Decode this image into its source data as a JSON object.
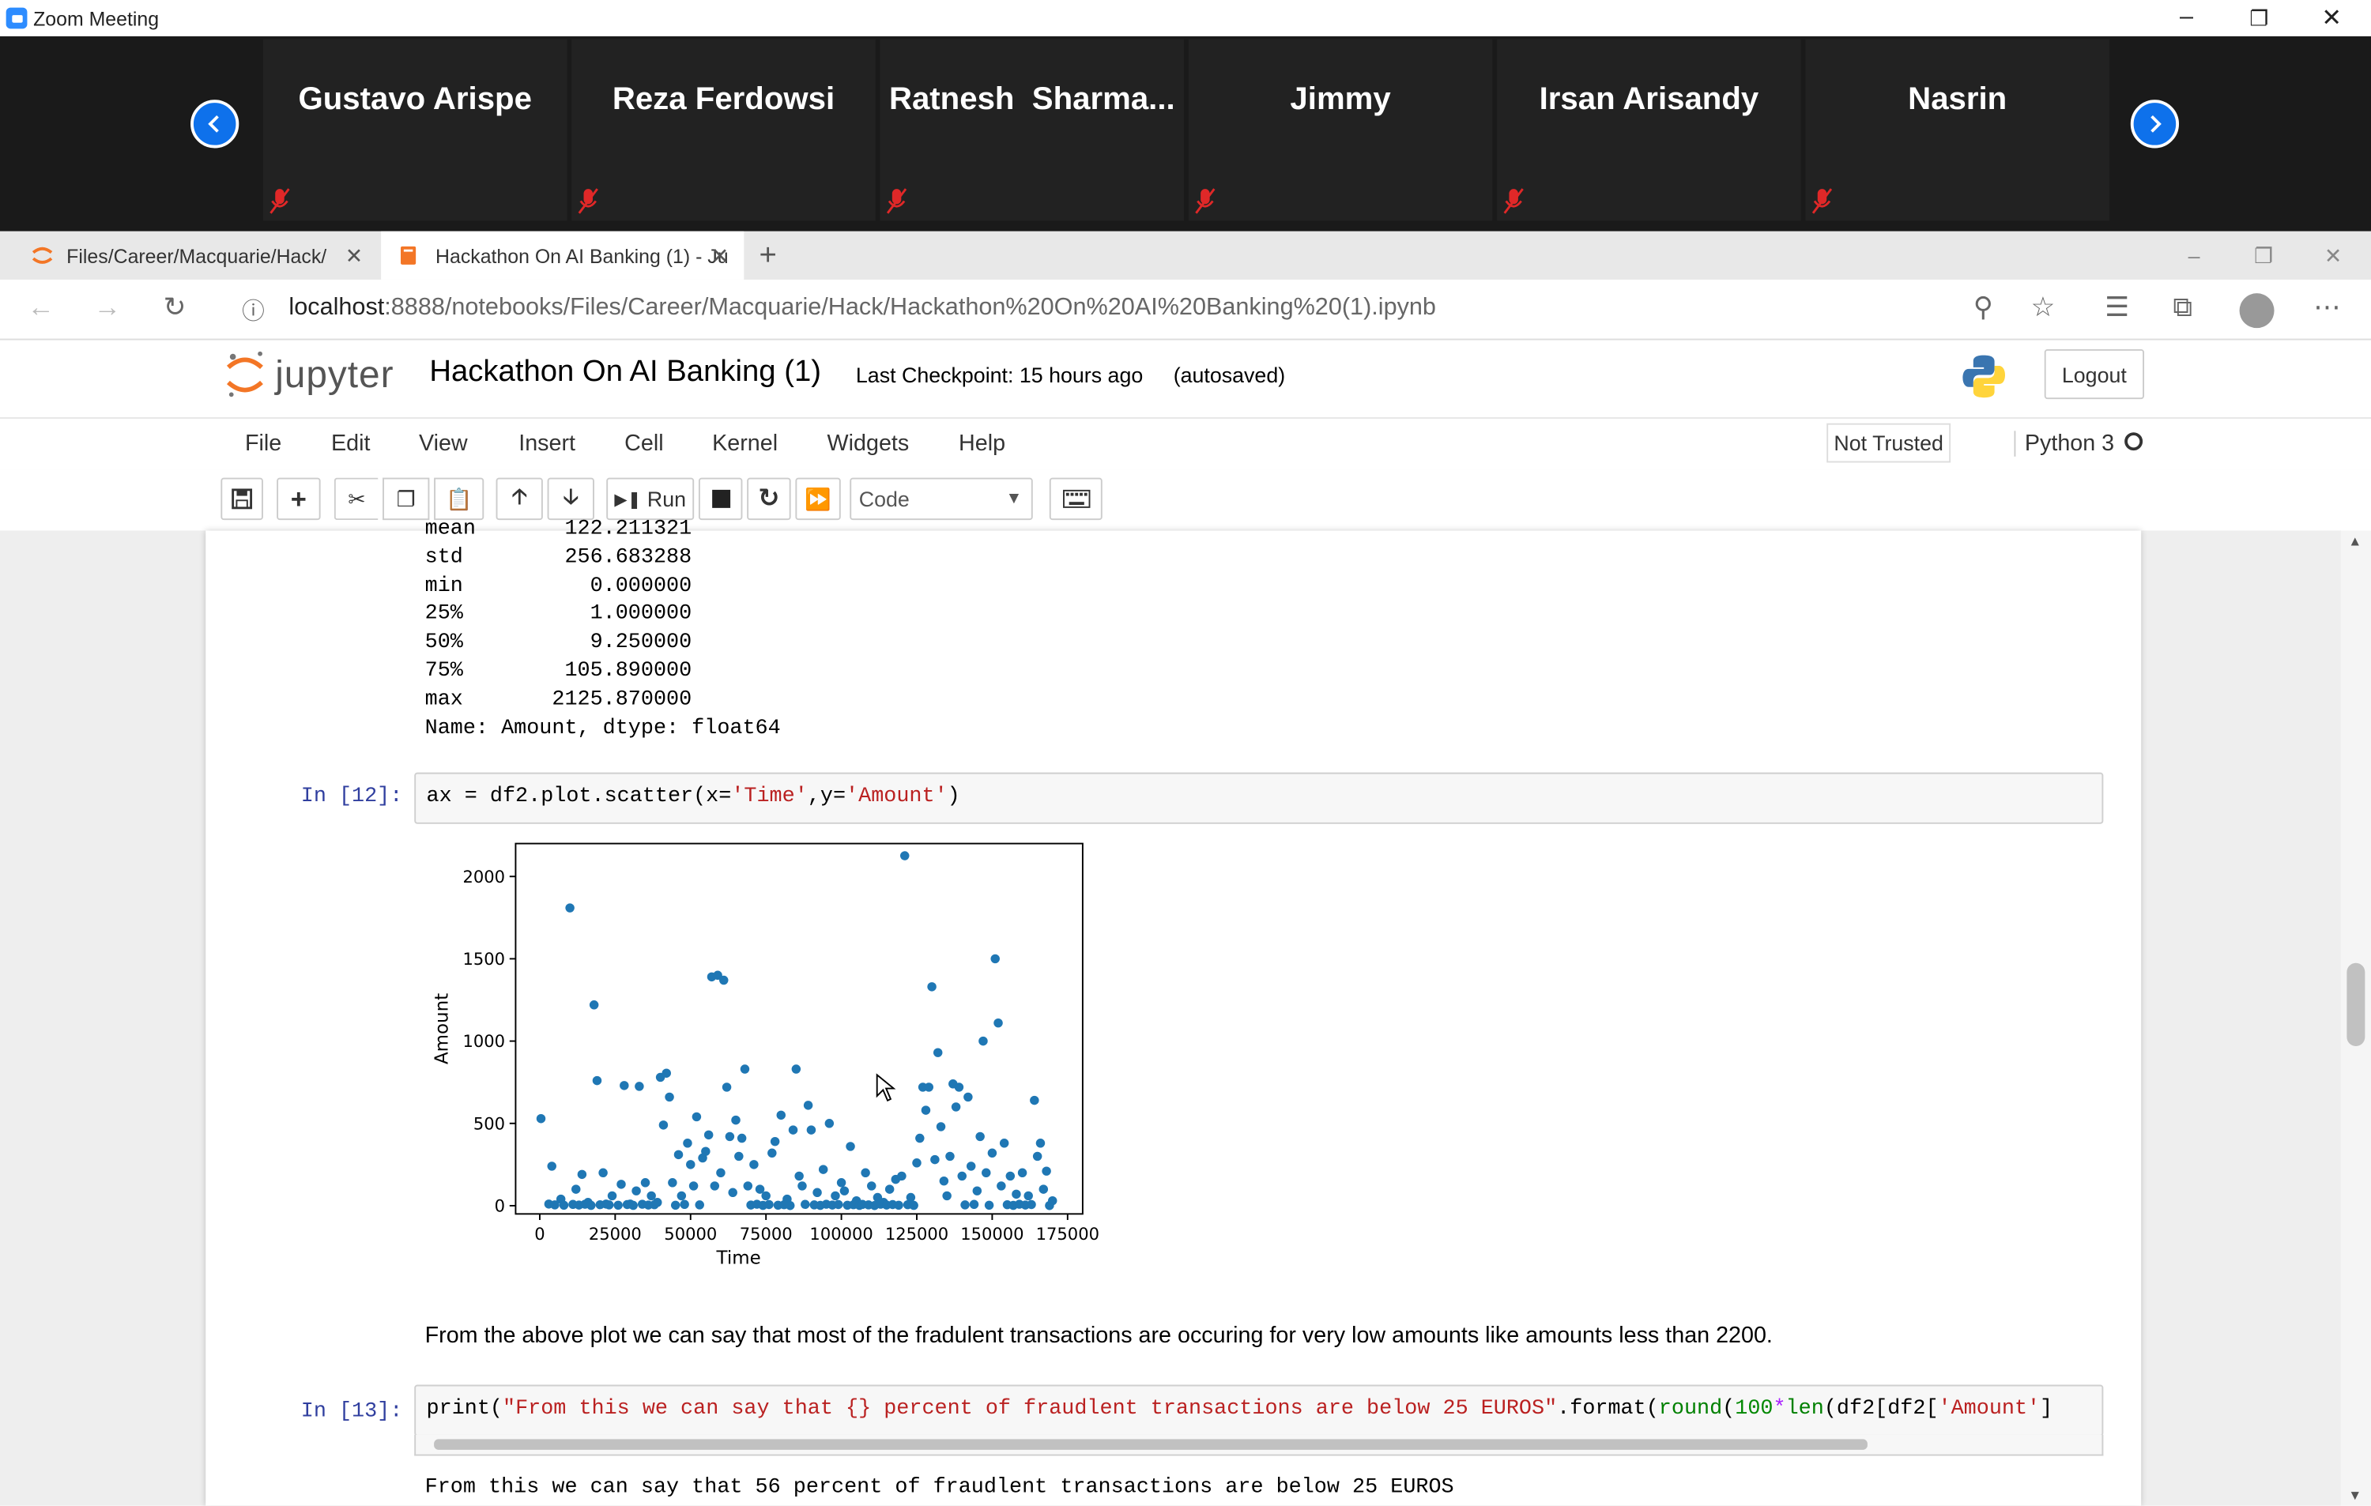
{
  "zoom": {
    "window_title": "Zoom Meeting",
    "participants": [
      {
        "name": "Gustavo Arispe"
      },
      {
        "name": "Reza Ferdowsi"
      },
      {
        "name": "Ratnesh  Sharma..."
      },
      {
        "name": "Jimmy"
      },
      {
        "name": "Irsan Arisandy"
      },
      {
        "name": "Nasrin"
      }
    ],
    "icons": {
      "prev": "chevron-left-icon",
      "next": "chevron-right-icon",
      "muted": "mic-muted-icon"
    },
    "accent": "#0e71eb",
    "muted_color": "#e02828"
  },
  "browser": {
    "tabs": [
      {
        "label": "Files/Career/Macquarie/Hack/"
      },
      {
        "label": "Hackathon On AI Banking (1) - Ju"
      }
    ],
    "url_host": "localhost",
    "url_rest": ":8888/notebooks/Files/Career/Macquarie/Hack/Hackathon%20On%20AI%20Banking%20(1).ipynb"
  },
  "jupyter": {
    "logo_text": "jupyter",
    "notebook_title": "Hackathon On AI Banking (1)",
    "checkpoint": "Last Checkpoint: 15 hours ago",
    "autosave": "(autosaved)",
    "logout_label": "Logout",
    "menu": [
      "File",
      "Edit",
      "View",
      "Insert",
      "Cell",
      "Kernel",
      "Widgets",
      "Help"
    ],
    "trust_label": "Not Trusted",
    "kernel_name": "Python 3",
    "toolbar": {
      "run_label": "Run",
      "cell_type": "Code"
    },
    "brand_color": "#f37626"
  },
  "notebook": {
    "describe_output": [
      "mean       122.211321",
      "std        256.683288",
      "min          0.000000",
      "25%          1.000000",
      "50%          9.250000",
      "75%        105.890000",
      "max       2125.870000",
      "Name: Amount, dtype: float64"
    ],
    "cell12": {
      "prompt": "In [12]:",
      "code": {
        "a": "ax = df2.plot.scatter(x=",
        "s1": "'Time'",
        "b": ",y=",
        "s2": "'Amount'",
        "c": ")"
      }
    },
    "markdown": "From the above plot we can say that most of the fradulent transactions are occuring for very low amounts like amounts less than 2200.",
    "cell13": {
      "prompt": "In [13]:",
      "code": {
        "a": "print(",
        "s1": "\"From this we can say that {} percent of fraudlent transactions are below 25 EUROS\"",
        "b": ".format(",
        "k1": "round",
        "c": "(",
        "n1": "100",
        "d": "*",
        "k2": "len",
        "e": "(df2[df2[",
        "s2": "'Amount'",
        "f": "]"
      },
      "output": "From this we can say that 56 percent of fraudlent transactions are below 25 EUROS"
    }
  },
  "chart_data": {
    "type": "scatter",
    "xlabel": "Time",
    "ylabel": "Amount",
    "xlim": [
      -8000,
      180000
    ],
    "ylim": [
      -50,
      2200
    ],
    "xticks": [
      0,
      25000,
      50000,
      75000,
      100000,
      125000,
      150000,
      175000
    ],
    "yticks": [
      0,
      500,
      1000,
      1500,
      2000
    ],
    "color": "#1f77b4",
    "points": [
      [
        406,
        529
      ],
      [
        4000,
        240
      ],
      [
        7000,
        40
      ],
      [
        10000,
        1809
      ],
      [
        12000,
        100
      ],
      [
        14000,
        190
      ],
      [
        16000,
        20
      ],
      [
        18000,
        1220
      ],
      [
        19000,
        760
      ],
      [
        21000,
        200
      ],
      [
        22000,
        10
      ],
      [
        24000,
        60
      ],
      [
        27000,
        130
      ],
      [
        28000,
        730
      ],
      [
        30000,
        10
      ],
      [
        32000,
        90
      ],
      [
        33000,
        725
      ],
      [
        35000,
        140
      ],
      [
        37000,
        60
      ],
      [
        39000,
        20
      ],
      [
        40000,
        780
      ],
      [
        41000,
        490
      ],
      [
        42000,
        805
      ],
      [
        43000,
        660
      ],
      [
        44000,
        140
      ],
      [
        46000,
        310
      ],
      [
        47000,
        60
      ],
      [
        49000,
        380
      ],
      [
        50000,
        250
      ],
      [
        51000,
        120
      ],
      [
        52000,
        540
      ],
      [
        54000,
        290
      ],
      [
        55000,
        330
      ],
      [
        56000,
        430
      ],
      [
        57000,
        1390
      ],
      [
        58000,
        120
      ],
      [
        59000,
        1400
      ],
      [
        60000,
        200
      ],
      [
        61000,
        1370
      ],
      [
        62000,
        720
      ],
      [
        63000,
        420
      ],
      [
        64000,
        80
      ],
      [
        65000,
        520
      ],
      [
        66000,
        300
      ],
      [
        67000,
        410
      ],
      [
        68000,
        830
      ],
      [
        69000,
        120
      ],
      [
        71000,
        250
      ],
      [
        73000,
        100
      ],
      [
        75000,
        60
      ],
      [
        77000,
        320
      ],
      [
        78000,
        390
      ],
      [
        80000,
        550
      ],
      [
        82000,
        40
      ],
      [
        84000,
        460
      ],
      [
        85000,
        830
      ],
      [
        86000,
        180
      ],
      [
        87000,
        120
      ],
      [
        89000,
        610
      ],
      [
        90000,
        460
      ],
      [
        92000,
        80
      ],
      [
        94000,
        220
      ],
      [
        96000,
        500
      ],
      [
        98000,
        60
      ],
      [
        100000,
        140
      ],
      [
        101000,
        90
      ],
      [
        103000,
        360
      ],
      [
        105000,
        30
      ],
      [
        108000,
        200
      ],
      [
        110000,
        120
      ],
      [
        112000,
        50
      ],
      [
        114000,
        20
      ],
      [
        116000,
        100
      ],
      [
        118000,
        160
      ],
      [
        120000,
        180
      ],
      [
        121000,
        2126
      ],
      [
        123000,
        50
      ],
      [
        125000,
        260
      ],
      [
        126000,
        410
      ],
      [
        127000,
        720
      ],
      [
        128000,
        580
      ],
      [
        129000,
        720
      ],
      [
        130000,
        1330
      ],
      [
        131000,
        280
      ],
      [
        132000,
        930
      ],
      [
        133000,
        480
      ],
      [
        134000,
        150
      ],
      [
        135000,
        60
      ],
      [
        136000,
        300
      ],
      [
        137000,
        740
      ],
      [
        138000,
        600
      ],
      [
        139000,
        720
      ],
      [
        140000,
        180
      ],
      [
        142000,
        660
      ],
      [
        143000,
        240
      ],
      [
        145000,
        90
      ],
      [
        146000,
        420
      ],
      [
        147000,
        1000
      ],
      [
        148000,
        200
      ],
      [
        150000,
        320
      ],
      [
        151000,
        1500
      ],
      [
        152000,
        1110
      ],
      [
        153000,
        120
      ],
      [
        154000,
        380
      ],
      [
        156000,
        180
      ],
      [
        158000,
        70
      ],
      [
        160000,
        200
      ],
      [
        162000,
        60
      ],
      [
        164000,
        640
      ],
      [
        165000,
        300
      ],
      [
        166000,
        380
      ],
      [
        167000,
        100
      ],
      [
        168000,
        210
      ],
      [
        3000,
        10
      ],
      [
        5000,
        5
      ],
      [
        8000,
        3
      ],
      [
        11000,
        8
      ],
      [
        13000,
        4
      ],
      [
        15000,
        9
      ],
      [
        17000,
        2
      ],
      [
        20000,
        6
      ],
      [
        23000,
        5
      ],
      [
        26000,
        3
      ],
      [
        29000,
        7
      ],
      [
        31000,
        2
      ],
      [
        34000,
        9
      ],
      [
        36000,
        4
      ],
      [
        38000,
        6
      ],
      [
        45000,
        3
      ],
      [
        48000,
        8
      ],
      [
        53000,
        5
      ],
      [
        70000,
        4
      ],
      [
        72000,
        9
      ],
      [
        74000,
        2
      ],
      [
        76000,
        7
      ],
      [
        79000,
        3
      ],
      [
        81000,
        6
      ],
      [
        83000,
        1
      ],
      [
        88000,
        8
      ],
      [
        91000,
        5
      ],
      [
        93000,
        2
      ],
      [
        95000,
        9
      ],
      [
        97000,
        4
      ],
      [
        99000,
        7
      ],
      [
        102000,
        3
      ],
      [
        104000,
        6
      ],
      [
        106000,
        2
      ],
      [
        107000,
        8
      ],
      [
        109000,
        5
      ],
      [
        111000,
        1
      ],
      [
        113000,
        9
      ],
      [
        115000,
        4
      ],
      [
        117000,
        7
      ],
      [
        119000,
        3
      ],
      [
        122000,
        6
      ],
      [
        124000,
        2
      ],
      [
        141000,
        5
      ],
      [
        144000,
        8
      ],
      [
        149000,
        3
      ],
      [
        155000,
        6
      ],
      [
        157000,
        2
      ],
      [
        159000,
        9
      ],
      [
        161000,
        4
      ],
      [
        163000,
        7
      ],
      [
        169000,
        1
      ],
      [
        170000,
        30
      ]
    ]
  }
}
